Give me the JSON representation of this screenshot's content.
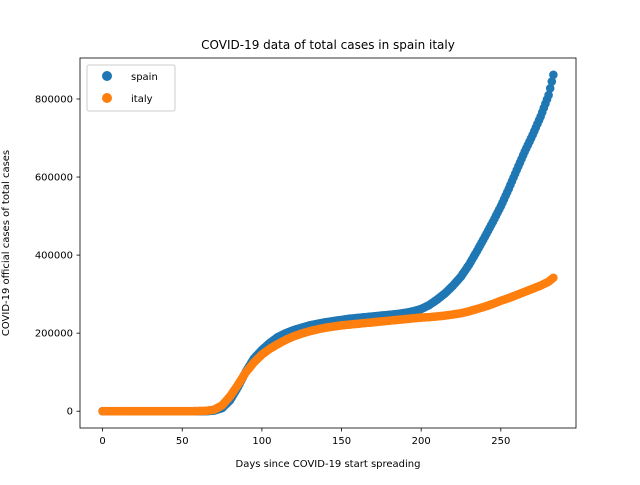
{
  "chart_data": {
    "type": "scatter",
    "title": "COVID-19 data of total cases in spain italy",
    "xlabel": "Days since COVID-19 start spreading",
    "ylabel": "COVID-19 official cases of total cases",
    "xlim": [
      -14.2,
      297.2
    ],
    "ylim": [
      -43000,
      905000
    ],
    "xticks": [
      0,
      50,
      100,
      150,
      200,
      250
    ],
    "yticks": [
      0,
      200000,
      400000,
      600000,
      800000
    ],
    "grid": false,
    "legend_position": "upper-left",
    "series": [
      {
        "name": "spain",
        "color": "#1f77b4",
        "points": [
          [
            0,
            0
          ],
          [
            20,
            0
          ],
          [
            40,
            0
          ],
          [
            55,
            0
          ],
          [
            65,
            200
          ],
          [
            70,
            1500
          ],
          [
            75,
            8000
          ],
          [
            80,
            28000
          ],
          [
            85,
            62000
          ],
          [
            90,
            102000
          ],
          [
            95,
            135000
          ],
          [
            100,
            157000
          ],
          [
            105,
            175000
          ],
          [
            110,
            190000
          ],
          [
            115,
            200000
          ],
          [
            120,
            208000
          ],
          [
            125,
            214000
          ],
          [
            130,
            220000
          ],
          [
            135,
            224000
          ],
          [
            140,
            228000
          ],
          [
            145,
            231000
          ],
          [
            150,
            234000
          ],
          [
            155,
            237000
          ],
          [
            160,
            239000
          ],
          [
            165,
            241000
          ],
          [
            170,
            243000
          ],
          [
            175,
            245000
          ],
          [
            180,
            247000
          ],
          [
            185,
            249000
          ],
          [
            190,
            252000
          ],
          [
            195,
            256000
          ],
          [
            200,
            262000
          ],
          [
            205,
            272000
          ],
          [
            210,
            286000
          ],
          [
            215,
            302000
          ],
          [
            220,
            322000
          ],
          [
            225,
            345000
          ],
          [
            230,
            375000
          ],
          [
            235,
            410000
          ],
          [
            240,
            447000
          ],
          [
            245,
            485000
          ],
          [
            250,
            525000
          ],
          [
            255,
            570000
          ],
          [
            260,
            618000
          ],
          [
            265,
            665000
          ],
          [
            270,
            708000
          ],
          [
            275,
            755000
          ],
          [
            280,
            810000
          ],
          [
            283,
            862000
          ]
        ]
      },
      {
        "name": "italy",
        "color": "#ff7f0e",
        "points": [
          [
            0,
            0
          ],
          [
            20,
            0
          ],
          [
            40,
            0
          ],
          [
            55,
            0
          ],
          [
            65,
            1000
          ],
          [
            70,
            4000
          ],
          [
            75,
            15000
          ],
          [
            80,
            38000
          ],
          [
            85,
            68000
          ],
          [
            90,
            100000
          ],
          [
            95,
            125000
          ],
          [
            100,
            145000
          ],
          [
            105,
            160000
          ],
          [
            110,
            172000
          ],
          [
            115,
            183000
          ],
          [
            120,
            192000
          ],
          [
            125,
            199000
          ],
          [
            130,
            205000
          ],
          [
            135,
            210000
          ],
          [
            140,
            214000
          ],
          [
            145,
            217000
          ],
          [
            150,
            220000
          ],
          [
            155,
            222000
          ],
          [
            160,
            224000
          ],
          [
            165,
            226000
          ],
          [
            170,
            228000
          ],
          [
            175,
            230000
          ],
          [
            180,
            232000
          ],
          [
            185,
            234000
          ],
          [
            190,
            236000
          ],
          [
            195,
            238000
          ],
          [
            200,
            240000
          ],
          [
            205,
            241000
          ],
          [
            210,
            243000
          ],
          [
            215,
            245000
          ],
          [
            220,
            248000
          ],
          [
            225,
            251000
          ],
          [
            230,
            256000
          ],
          [
            235,
            262000
          ],
          [
            240,
            268000
          ],
          [
            245,
            275000
          ],
          [
            250,
            283000
          ],
          [
            255,
            290000
          ],
          [
            260,
            298000
          ],
          [
            265,
            306000
          ],
          [
            270,
            314000
          ],
          [
            275,
            322000
          ],
          [
            280,
            332000
          ],
          [
            283,
            342000
          ]
        ]
      }
    ]
  }
}
